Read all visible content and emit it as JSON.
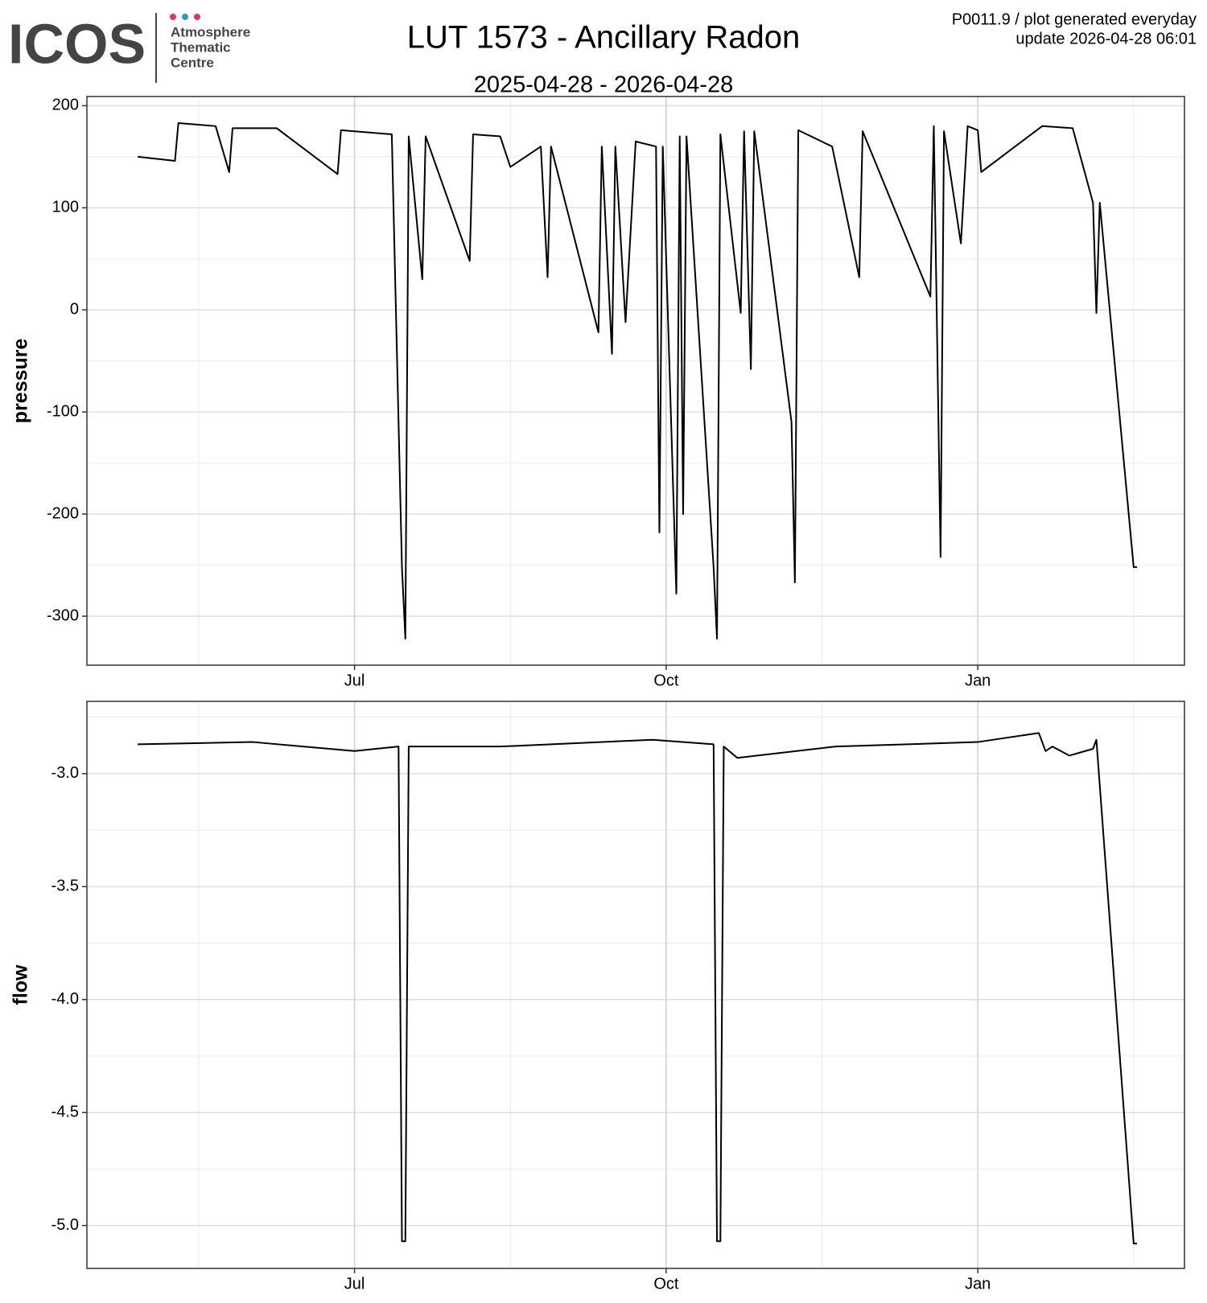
{
  "header": {
    "logo": "ICOS",
    "logo_lines": [
      "Atmosphere",
      "Thematic",
      "Centre"
    ],
    "title": "LUT 1573 - Ancillary Radon",
    "subtitle": "2025-04-28 - 2026-04-28",
    "note": "P0011.9 / plot generated everyday",
    "update": "update  2026-04-28 06:01"
  },
  "chart_data": [
    {
      "type": "line",
      "ylabel": "pressure",
      "color": "#000000",
      "grid": true,
      "xlim": [
        "2025-04-13",
        "2026-03-03"
      ],
      "xticks": [
        {
          "value": "2025-07-01",
          "label": "Jul"
        },
        {
          "value": "2025-10-01",
          "label": "Oct"
        },
        {
          "value": "2026-01-01",
          "label": "Jan"
        }
      ],
      "ylim": [
        -348,
        209
      ],
      "yticks": [
        -300,
        -200,
        -100,
        0,
        100,
        200
      ],
      "x": [
        "2025-04-28",
        "2025-05-09",
        "2025-05-10",
        "2025-05-21",
        "2025-05-25",
        "2025-05-26",
        "2025-06-08",
        "2025-06-26",
        "2025-06-27",
        "2025-07-12",
        "2025-07-15",
        "2025-07-16",
        "2025-07-17",
        "2025-07-21",
        "2025-07-22",
        "2025-08-04",
        "2025-08-05",
        "2025-08-13",
        "2025-08-16",
        "2025-08-25",
        "2025-08-27",
        "2025-08-28",
        "2025-09-11",
        "2025-09-12",
        "2025-09-15",
        "2025-09-16",
        "2025-09-19",
        "2025-09-22",
        "2025-09-28",
        "2025-09-29",
        "2025-09-30",
        "2025-10-04",
        "2025-10-05",
        "2025-10-06",
        "2025-10-07",
        "2025-10-15",
        "2025-10-16",
        "2025-10-17",
        "2025-10-23",
        "2025-10-24",
        "2025-10-26",
        "2025-10-27",
        "2025-11-07",
        "2025-11-08",
        "2025-11-09",
        "2025-11-19",
        "2025-11-27",
        "2025-11-28",
        "2025-12-18",
        "2025-12-19",
        "2025-12-21",
        "2025-12-22",
        "2025-12-27",
        "2025-12-29",
        "2026-01-01",
        "2026-01-02",
        "2026-01-20",
        "2026-01-29",
        "2026-02-04",
        "2026-02-05",
        "2026-02-06",
        "2026-02-16",
        "2026-02-17"
      ],
      "series": [
        {
          "values": [
            150,
            146,
            183,
            180,
            135,
            178,
            178,
            133,
            176,
            172,
            -252,
            -322,
            170,
            30,
            170,
            48,
            172,
            170,
            140,
            160,
            32,
            160,
            -22,
            160,
            -43,
            160,
            -12,
            165,
            160,
            -218,
            160,
            -278,
            170,
            -200,
            170,
            -252,
            -322,
            172,
            -3,
            175,
            -58,
            175,
            -110,
            -267,
            176,
            160,
            32,
            175,
            13,
            180,
            -242,
            175,
            65,
            180,
            176,
            135,
            180,
            178,
            105,
            -3,
            105,
            -252,
            -252
          ]
        }
      ]
    },
    {
      "type": "line",
      "ylabel": "flow",
      "color": "#000000",
      "grid": true,
      "xlim": [
        "2025-04-13",
        "2026-03-03"
      ],
      "xticks": [
        {
          "value": "2025-07-01",
          "label": "Jul"
        },
        {
          "value": "2025-10-01",
          "label": "Oct"
        },
        {
          "value": "2026-01-01",
          "label": "Jan"
        }
      ],
      "ylim": [
        -5.19,
        -2.68
      ],
      "yticks": [
        {
          "value": -5,
          "label": "-5.0"
        },
        -4.5,
        {
          "value": -4,
          "label": "-4.0"
        },
        -3.5,
        {
          "value": -3,
          "label": "-3.0"
        }
      ],
      "x": [
        "2025-04-28",
        "2025-06-01",
        "2025-07-01",
        "2025-07-14",
        "2025-07-15",
        "2025-07-16",
        "2025-07-17",
        "2025-08-13",
        "2025-09-27",
        "2025-10-15",
        "2025-10-16",
        "2025-10-17",
        "2025-10-18",
        "2025-10-22",
        "2025-11-20",
        "2026-01-01",
        "2026-01-19",
        "2026-01-21",
        "2026-01-23",
        "2026-01-28",
        "2026-02-04",
        "2026-02-05",
        "2026-02-16",
        "2026-02-17"
      ],
      "series": [
        {
          "values": [
            -2.87,
            -2.86,
            -2.9,
            -2.88,
            -5.07,
            -5.07,
            -2.88,
            -2.88,
            -2.85,
            -2.87,
            -5.07,
            -5.07,
            -2.88,
            -2.93,
            -2.88,
            -2.86,
            -2.82,
            -2.9,
            -2.88,
            -2.92,
            -2.89,
            -2.85,
            -5.08,
            -5.08
          ]
        }
      ]
    }
  ]
}
